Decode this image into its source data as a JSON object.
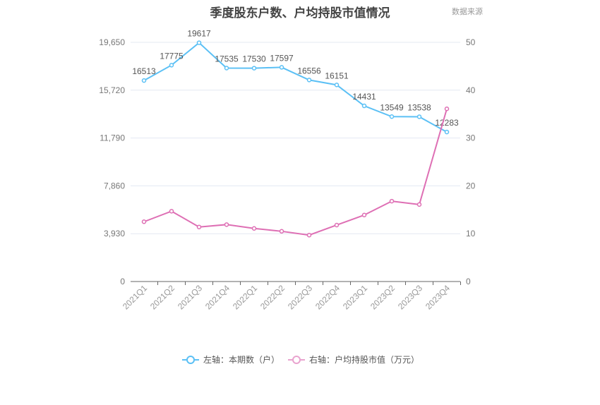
{
  "chart_data": {
    "type": "line",
    "title": "季度股东户数、户均持股市值情况",
    "watermark": "数据来源",
    "categories": [
      "2021Q1",
      "2021Q2",
      "2021Q3",
      "2021Q4",
      "2022Q1",
      "2022Q2",
      "2022Q3",
      "2022Q4",
      "2023Q1",
      "2023Q2",
      "2023Q3",
      "2023Q4"
    ],
    "left_axis": {
      "ticks": [
        "0",
        "3,930",
        "7,860",
        "11,790",
        "15,720",
        "19,650"
      ],
      "ylim": [
        0,
        19650
      ]
    },
    "right_axis": {
      "ticks": [
        "0",
        "10",
        "20",
        "30",
        "40",
        "50"
      ],
      "ylim": [
        0,
        50
      ]
    },
    "series": [
      {
        "name": "左轴：本期数（户）",
        "axis": "left",
        "color": "#5bc0f5",
        "values": [
          16513,
          17775,
          19617,
          17535,
          17530,
          17597,
          16556,
          16151,
          14431,
          13549,
          13538,
          12283
        ]
      },
      {
        "name": "右轴：户均持股市值（万元）",
        "axis": "right",
        "color": "#de6fb4",
        "values": [
          12.5,
          14.7,
          11.4,
          11.9,
          11.1,
          10.5,
          9.7,
          11.8,
          13.9,
          16.8,
          16.1,
          36.1
        ]
      }
    ],
    "grid": true,
    "legend": "bottom"
  }
}
